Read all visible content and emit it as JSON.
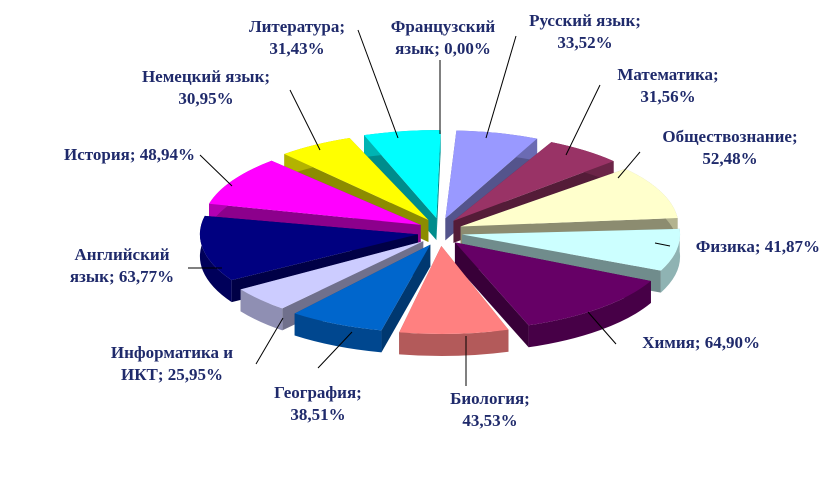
{
  "chart_data": {
    "type": "pie",
    "style": "3d-exploded",
    "title": "",
    "slices": [
      {
        "name": "Русский язык",
        "value": 33.52,
        "label_lines": [
          "Русский язык;",
          "33,52%"
        ],
        "color": "#9999ff"
      },
      {
        "name": "Математика",
        "value": 31.56,
        "label_lines": [
          "Математика;",
          "31,56%"
        ],
        "color": "#993366"
      },
      {
        "name": "Обществознание",
        "value": 52.48,
        "label_lines": [
          "Обществознание;",
          "52,48%"
        ],
        "color": "#ffffcc"
      },
      {
        "name": "Физика",
        "value": 41.87,
        "label_lines": [
          "Физика; 41,87%"
        ],
        "color": "#ccffff"
      },
      {
        "name": "Химия",
        "value": 64.9,
        "label_lines": [
          "Химия; 64,90%"
        ],
        "color": "#660066"
      },
      {
        "name": "Биология",
        "value": 43.53,
        "label_lines": [
          "Биология;",
          "43,53%"
        ],
        "color": "#ff8080"
      },
      {
        "name": "География",
        "value": 38.51,
        "label_lines": [
          "География;",
          "38,51%"
        ],
        "color": "#0066cc"
      },
      {
        "name": "Информатика и ИКТ",
        "value": 25.95,
        "label_lines": [
          "Информатика и",
          "ИКТ; 25,95%"
        ],
        "color": "#ccccff"
      },
      {
        "name": "Английский язык",
        "value": 63.77,
        "label_lines": [
          "Английский",
          "язык; 63,77%"
        ],
        "color": "#000080"
      },
      {
        "name": "История",
        "value": 48.94,
        "label_lines": [
          "История; 48,94%"
        ],
        "color": "#ff00ff"
      },
      {
        "name": "Немецкий язык",
        "value": 30.95,
        "label_lines": [
          "Немецкий язык;",
          "30,95%"
        ],
        "color": "#ffff00"
      },
      {
        "name": "Литература",
        "value": 31.43,
        "label_lines": [
          "Литература;",
          "31,43%"
        ],
        "color": "#00ffff"
      },
      {
        "name": "Французский язык",
        "value": 0.0,
        "label_lines": [
          "Французский",
          "язык; 0,00%"
        ],
        "color": "#800080"
      }
    ]
  }
}
